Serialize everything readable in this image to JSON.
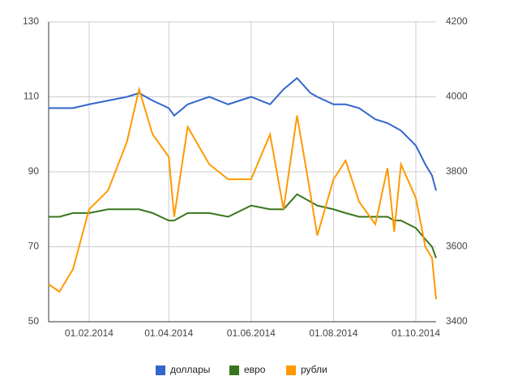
{
  "chart_data": {
    "type": "line",
    "x": [
      "02.01.2014",
      "10.01.2014",
      "20.01.2014",
      "01.02.2014",
      "15.02.2014",
      "01.03.2014",
      "10.03.2014",
      "20.03.2014",
      "01.04.2014",
      "05.04.2014",
      "15.04.2014",
      "01.05.2014",
      "15.05.2014",
      "01.06.2014",
      "15.06.2014",
      "25.06.2014",
      "05.07.2014",
      "15.07.2014",
      "20.07.2014",
      "01.08.2014",
      "10.08.2014",
      "20.08.2014",
      "01.09.2014",
      "10.09.2014",
      "15.09.2014",
      "20.09.2014",
      "01.10.2014",
      "08.10.2014",
      "13.10.2014",
      "16.10.2014"
    ],
    "series": [
      {
        "name": "доллары",
        "color": "#3366cc",
        "values": [
          107,
          107,
          107,
          108,
          109,
          110,
          111,
          109,
          107,
          105,
          108,
          110,
          108,
          110,
          108,
          112,
          115,
          111,
          110,
          108,
          108,
          107,
          104,
          103,
          102,
          101,
          97,
          92,
          89,
          85
        ]
      },
      {
        "name": "евро",
        "color": "#38761d",
        "values": [
          78,
          78,
          79,
          79,
          80,
          80,
          80,
          79,
          77,
          77,
          79,
          79,
          78,
          81,
          80,
          80,
          84,
          82,
          81,
          80,
          79,
          78,
          78,
          78,
          77,
          77,
          75,
          72,
          70,
          67
        ]
      },
      {
        "name": "рубли",
        "color": "#ff9900",
        "axis": "y2",
        "values": [
          3500,
          3480,
          3540,
          3700,
          3750,
          3880,
          4020,
          3900,
          3840,
          3680,
          3920,
          3820,
          3780,
          3780,
          3900,
          3700,
          3950,
          3740,
          3630,
          3780,
          3830,
          3720,
          3660,
          3810,
          3640,
          3820,
          3730,
          3600,
          3570,
          3460
        ]
      }
    ],
    "xlim": [
      "02.01.2014",
      "16.10.2014"
    ],
    "xticks": [
      "01.02.2014",
      "01.04.2014",
      "01.06.2014",
      "01.08.2014",
      "01.10.2014"
    ],
    "ylim": [
      50,
      130
    ],
    "yticks": [
      50,
      70,
      90,
      110,
      130
    ],
    "y2lim": [
      3400,
      4200
    ],
    "y2ticks": [
      3400,
      3600,
      3800,
      4000,
      4200
    ],
    "grid": true,
    "legend": "bottom"
  }
}
